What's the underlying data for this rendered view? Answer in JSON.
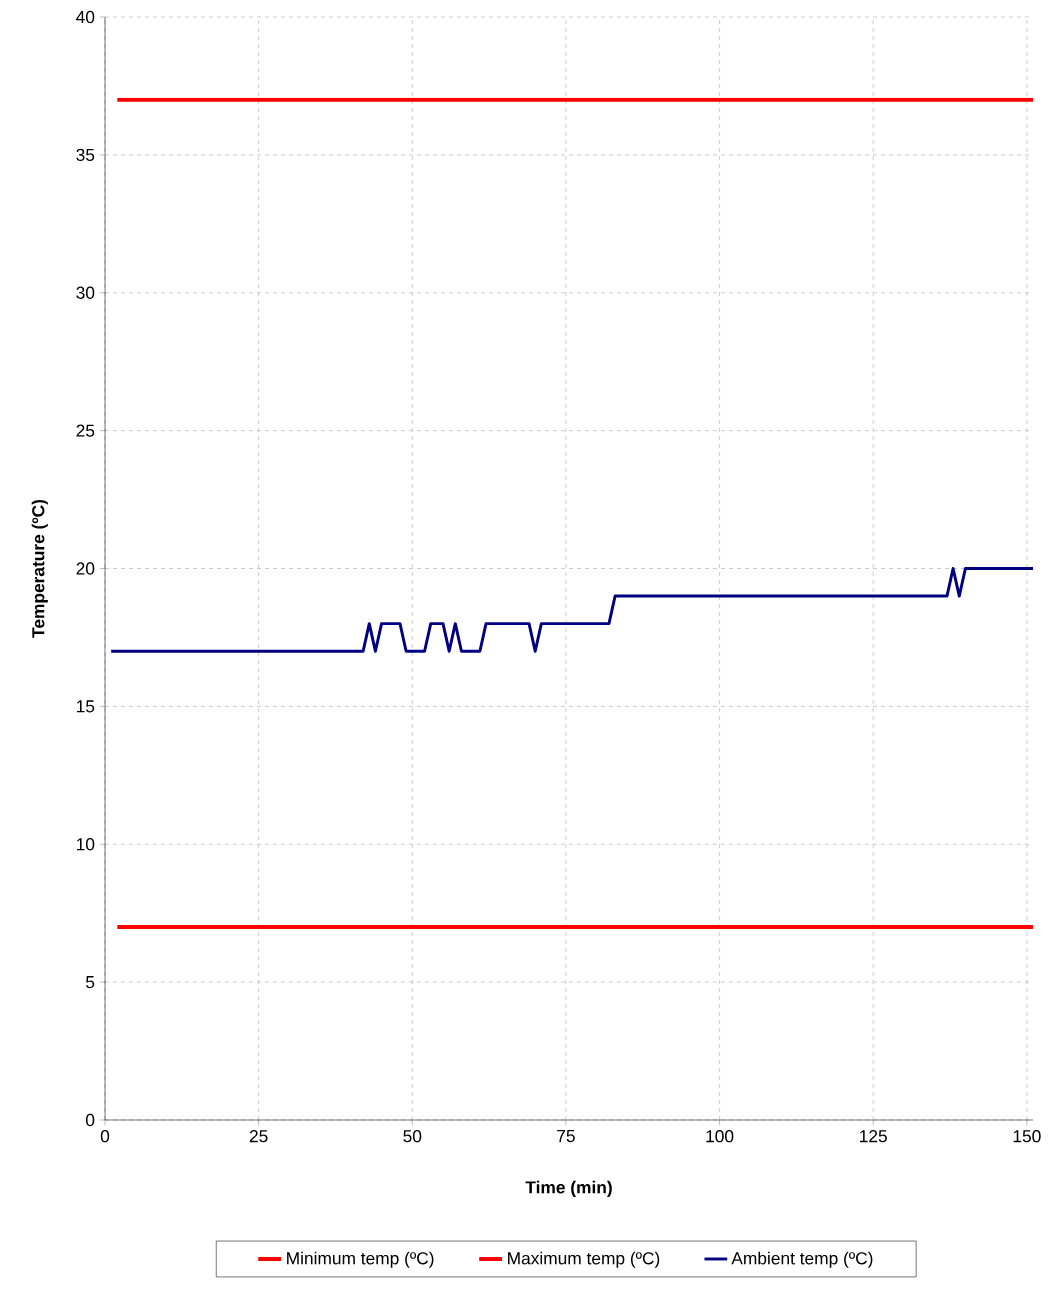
{
  "chart_data": {
    "type": "line",
    "xlabel": "Time  (min)",
    "ylabel": "Temperature (ºC)",
    "xlim": [
      0,
      151
    ],
    "xticks": [
      0,
      25,
      50,
      75,
      100,
      125,
      150
    ],
    "ylim": [
      0,
      40
    ],
    "yticks": [
      0,
      5,
      10,
      15,
      20,
      25,
      30,
      35,
      40
    ],
    "grid": true,
    "legend": "bottom",
    "marker": "none",
    "line_style": "solid",
    "series": [
      {
        "name": "Minimum temp (ºC)",
        "color": "#ff0000",
        "x": [
          2,
          151
        ],
        "values": [
          7,
          7
        ]
      },
      {
        "name": "Maximum temp (ºC)",
        "color": "#ff0000",
        "x": [
          2,
          151
        ],
        "values": [
          37,
          37
        ]
      },
      {
        "name": "Ambient temp (ºC)",
        "color": "#000080",
        "x": [
          1,
          42,
          43,
          44,
          45,
          48,
          49,
          52,
          53,
          55,
          56,
          57,
          58,
          61,
          62,
          69,
          70,
          71,
          82,
          83,
          137,
          138,
          139,
          140,
          151
        ],
        "values": [
          17,
          17,
          18,
          17,
          18,
          18,
          17,
          17,
          18,
          18,
          17,
          18,
          17,
          17,
          18,
          18,
          17,
          18,
          18,
          19,
          19,
          20,
          19,
          20,
          20
        ]
      }
    ]
  }
}
